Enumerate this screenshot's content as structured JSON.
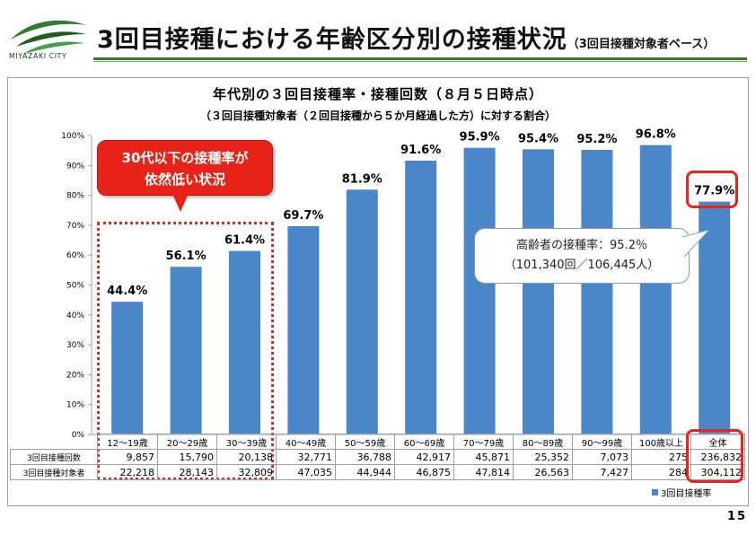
{
  "header": {
    "logo_text": "MIYAZAKI CITY",
    "title": "3回目接種における年齢区分別の接種状況",
    "subtitle": "（3回目接種対象者ベース）"
  },
  "colors": {
    "bar": "#4a86c8",
    "accent": "#e8231a",
    "header_line": "#2e7d32"
  },
  "chart_data": {
    "type": "bar",
    "title": "年代別の３回目接種率・接種回数（８月５日時点）",
    "subtitle": "（３回目接種対象者（２回目接種から５か月経過した方）に対する割合）",
    "categories": [
      "12～19歳",
      "20～29歳",
      "30～39歳",
      "40～49歳",
      "50～59歳",
      "60～69歳",
      "70～79歳",
      "80～89歳",
      "90～99歳",
      "100歳以上",
      "全体"
    ],
    "series": [
      {
        "name": "3回目接種率",
        "values": [
          44.4,
          56.1,
          61.4,
          69.7,
          81.9,
          91.6,
          95.9,
          95.4,
          95.2,
          96.8,
          77.9
        ]
      }
    ],
    "value_labels": [
      "44.4%",
      "56.1%",
      "61.4%",
      "69.7%",
      "81.9%",
      "91.6%",
      "95.9%",
      "95.4%",
      "95.2%",
      "96.8%",
      "77.9%"
    ],
    "ylim": [
      0,
      100
    ],
    "yticks": [
      "0%",
      "10%",
      "20%",
      "30%",
      "40%",
      "50%",
      "60%",
      "70%",
      "80%",
      "90%",
      "100%"
    ],
    "grid": false,
    "legend": "bottom-right"
  },
  "table": {
    "rows": [
      {
        "label": "3回目接種回数",
        "values": [
          "9,857",
          "15,790",
          "20,138",
          "32,771",
          "36,788",
          "42,917",
          "45,871",
          "25,352",
          "7,073",
          "275",
          "236,832"
        ]
      },
      {
        "label": "3回目接種対象者",
        "values": [
          "22,218",
          "28,143",
          "32,809",
          "47,035",
          "44,944",
          "46,875",
          "47,814",
          "26,563",
          "7,427",
          "284",
          "304,112"
        ]
      }
    ]
  },
  "callout": {
    "line1": "30代以下の接種率が",
    "line2": "依然低い状況"
  },
  "elderly_note": {
    "line1": "高齢者の接種率：95.2％",
    "line2": "（101,340回／106,445人）"
  },
  "page_number": "15"
}
